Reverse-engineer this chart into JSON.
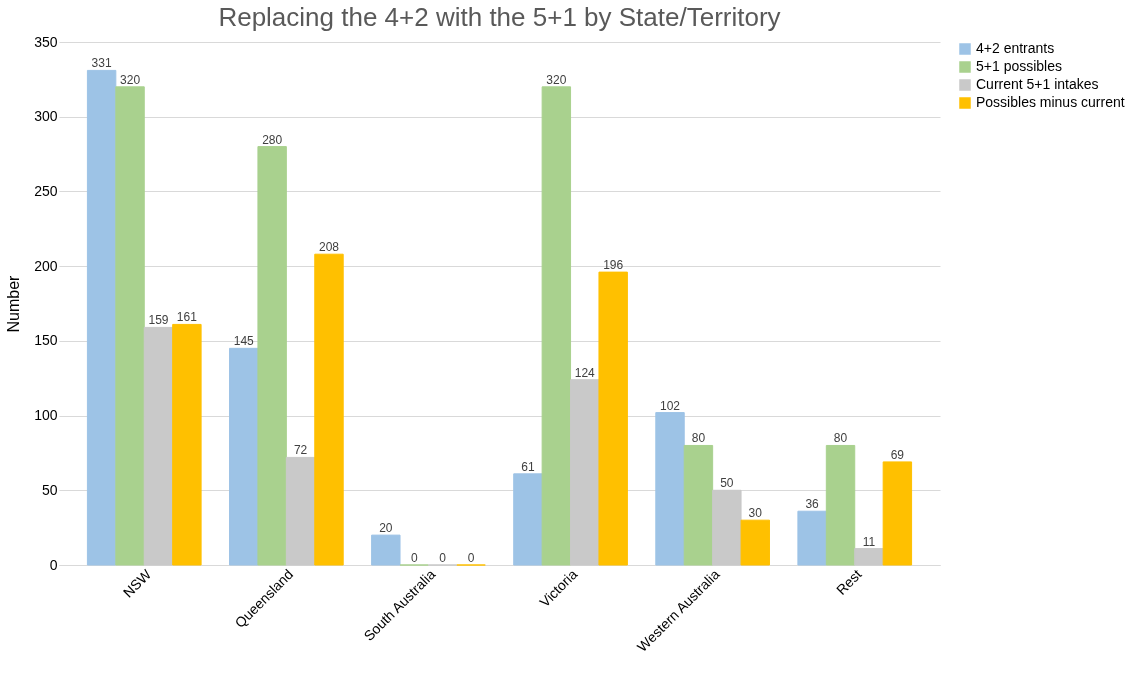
{
  "chart_data": {
    "type": "bar",
    "title": "Replacing the 4+2 with the 5+1 by State/Territory",
    "ylabel": "Number",
    "categories": [
      "NSW",
      "Queensland",
      "South Australia",
      "Victoria",
      "Western Australia",
      "Rest"
    ],
    "series": [
      {
        "name": "4+2 entrants",
        "color": "#9dc3e6",
        "values": [
          331,
          145,
          20,
          61,
          102,
          36
        ]
      },
      {
        "name": "5+1 possibles",
        "color": "#a9d18e",
        "values": [
          320,
          280,
          0,
          320,
          80,
          80
        ]
      },
      {
        "name": "Current 5+1 intakes",
        "color": "#c9c9c9",
        "values": [
          159,
          72,
          0,
          124,
          50,
          11
        ]
      },
      {
        "name": "Possibles minus current",
        "color": "#ffc000",
        "values": [
          161,
          208,
          0,
          196,
          30,
          69
        ]
      }
    ],
    "ylim": [
      0,
      350
    ],
    "yticks": [
      0,
      50,
      100,
      150,
      200,
      250,
      300,
      350
    ],
    "grid": "y",
    "legend": "right",
    "data_labels": true
  }
}
